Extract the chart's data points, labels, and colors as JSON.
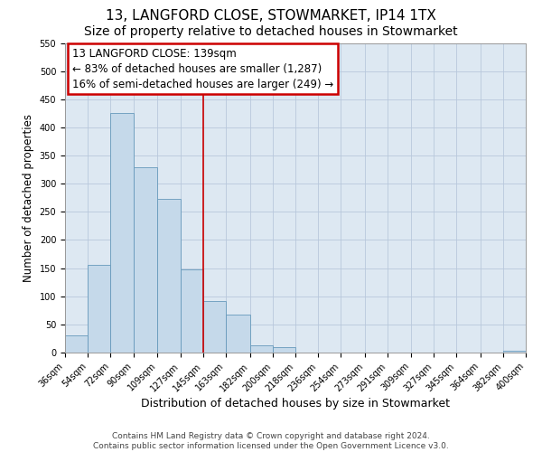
{
  "title": "13, LANGFORD CLOSE, STOWMARKET, IP14 1TX",
  "subtitle": "Size of property relative to detached houses in Stowmarket",
  "xlabel": "Distribution of detached houses by size in Stowmarket",
  "ylabel": "Number of detached properties",
  "bar_color": "#c5d9ea",
  "bar_edge_color": "#6699bb",
  "grid_color": "#b8c8dc",
  "background_color": "#dde8f2",
  "bins": [
    36,
    54,
    72,
    90,
    109,
    127,
    145,
    163,
    182,
    200,
    218,
    236,
    254,
    273,
    291,
    309,
    327,
    345,
    364,
    382,
    400
  ],
  "tick_labels": [
    "36sqm",
    "54sqm",
    "72sqm",
    "90sqm",
    "109sqm",
    "127sqm",
    "145sqm",
    "163sqm",
    "182sqm",
    "200sqm",
    "218sqm",
    "236sqm",
    "254sqm",
    "273sqm",
    "291sqm",
    "309sqm",
    "327sqm",
    "345sqm",
    "364sqm",
    "382sqm",
    "400sqm"
  ],
  "bar_heights": [
    30,
    156,
    425,
    330,
    273,
    147,
    92,
    68,
    13,
    10,
    0,
    0,
    0,
    0,
    0,
    0,
    0,
    0,
    0,
    3
  ],
  "property_size": 139,
  "vline_color": "#cc0000",
  "vline_x": 145,
  "annotation_line1": "13 LANGFORD CLOSE: 139sqm",
  "annotation_line2": "← 83% of detached houses are smaller (1,287)",
  "annotation_line3": "16% of semi-detached houses are larger (249) →",
  "annotation_box_color": "#cc0000",
  "ylim": [
    0,
    550
  ],
  "yticks": [
    0,
    50,
    100,
    150,
    200,
    250,
    300,
    350,
    400,
    450,
    500,
    550
  ],
  "footer": "Contains HM Land Registry data © Crown copyright and database right 2024.\nContains public sector information licensed under the Open Government Licence v3.0.",
  "title_fontsize": 11,
  "subtitle_fontsize": 10,
  "xlabel_fontsize": 9,
  "ylabel_fontsize": 8.5,
  "tick_fontsize": 7,
  "annotation_fontsize": 8.5,
  "footer_fontsize": 6.5
}
